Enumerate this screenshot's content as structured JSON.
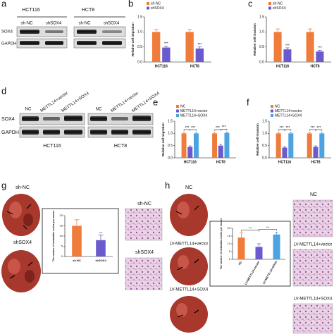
{
  "panels": {
    "a": {
      "letter": "a",
      "cell_lines": [
        "HCT116",
        "HCT8"
      ],
      "lanes": [
        "sh-NC",
        "shSOX4",
        "sh-NC",
        "shSOX4"
      ],
      "rows": [
        "SOX4",
        "GAPDH"
      ]
    },
    "b": {
      "letter": "b"
    },
    "c": {
      "letter": "c"
    },
    "d": {
      "letter": "d",
      "lanes": [
        "NC",
        "METTL14+vector",
        "METTL14+SOX4",
        "NC",
        "METTL14+vector",
        "METTL14+SOX4"
      ],
      "rows": [
        "SOX4",
        "GAPDH"
      ],
      "cell_lines": [
        "HCT116",
        "HCT8"
      ]
    },
    "e": {
      "letter": "e"
    },
    "f": {
      "letter": "f"
    },
    "g": {
      "letter": "g",
      "lungs": [
        "sh-NC",
        "shSOX4"
      ],
      "histology": [
        "sh-NC",
        "shSOX4"
      ]
    },
    "h": {
      "letter": "h",
      "lungs": [
        "NC",
        "LV-METTL14+vector",
        "LV-METTL14+SOX4"
      ],
      "histology": [
        "NC",
        "LV-METTL14+vector",
        "LV-METTL14+SOX4"
      ]
    }
  },
  "chart_data": [
    {
      "type": "bar",
      "y_label": "Relative cell migration",
      "categories": [
        "HCT116",
        "HCT8"
      ],
      "series": [
        {
          "name": "sh-NC",
          "color": "#f07c3c",
          "values": [
            1.0,
            1.0
          ],
          "errors": [
            0.08,
            0.08
          ]
        },
        {
          "name": "shSOX4",
          "color": "#6a5acd",
          "values": [
            0.48,
            0.45
          ],
          "errors": [
            0.05,
            0.05
          ],
          "significance": [
            "***",
            "***"
          ]
        }
      ],
      "ylim": [
        0,
        1.5
      ],
      "yticks": [
        {
          "value": 0,
          "label": "0.0"
        },
        {
          "value": 0.5,
          "label": "0.5"
        },
        {
          "value": 1,
          "label": "1.0"
        },
        {
          "value": 1.5,
          "label": "1.5"
        }
      ],
      "legend": "upper left"
    },
    {
      "type": "bar",
      "y_label": "Relative cell invasion",
      "categories": [
        "HCT116",
        "HCT8"
      ],
      "series": [
        {
          "name": "sh-NC",
          "color": "#f07c3c",
          "values": [
            1.0,
            1.0
          ],
          "errors": [
            0.1,
            0.1
          ]
        },
        {
          "name": "shSOX4",
          "color": "#6a5acd",
          "values": [
            0.42,
            0.35
          ],
          "errors": [
            0.05,
            0.04
          ],
          "significance": [
            "***",
            "***"
          ]
        }
      ],
      "ylim": [
        0,
        1.5
      ],
      "yticks": [
        {
          "value": 0,
          "label": "0.0"
        },
        {
          "value": 0.5,
          "label": "0.5"
        },
        {
          "value": 1,
          "label": "1.0"
        },
        {
          "value": 1.5,
          "label": "1.5"
        }
      ],
      "legend": "upper left"
    },
    {
      "type": "bar",
      "y_label": "Relative cell migration",
      "categories": [
        "HCT116",
        "HCT8"
      ],
      "brackets": true,
      "series": [
        {
          "name": "NC",
          "color": "#f07c3c",
          "values": [
            1.0,
            1.0
          ],
          "errors": [
            0.04,
            0.04
          ]
        },
        {
          "name": "METTL14+vector",
          "color": "#6a5acd",
          "values": [
            0.45,
            0.5
          ],
          "errors": [
            0.04,
            0.05
          ],
          "significance": [
            "***",
            "***"
          ]
        },
        {
          "name": "METTL14+SOX4",
          "color": "#4da3e0",
          "values": [
            1.0,
            1.02
          ],
          "errors": [
            0.04,
            0.04
          ],
          "significance": [
            "***",
            "***"
          ]
        }
      ],
      "ylim": [
        0,
        1.5
      ],
      "yticks": [
        {
          "value": 0,
          "label": "0.0"
        },
        {
          "value": 0.5,
          "label": "0.5"
        },
        {
          "value": 1,
          "label": "1.0"
        },
        {
          "value": 1.5,
          "label": "1.5"
        }
      ],
      "legend": "upper left"
    },
    {
      "type": "bar",
      "y_label": "Relative cell invasion",
      "categories": [
        "HCT116",
        "HCT8"
      ],
      "brackets": true,
      "series": [
        {
          "name": "NC",
          "color": "#f07c3c",
          "values": [
            1.0,
            1.0
          ],
          "errors": [
            0.04,
            0.04
          ]
        },
        {
          "name": "METTL14+vector",
          "color": "#6a5acd",
          "values": [
            0.42,
            0.45
          ],
          "errors": [
            0.04,
            0.04
          ],
          "significance": [
            "***",
            "***"
          ]
        },
        {
          "name": "METTL14+SOX4",
          "color": "#4da3e0",
          "values": [
            1.0,
            1.0
          ],
          "errors": [
            0.04,
            0.04
          ],
          "significance": [
            "***",
            "***"
          ]
        }
      ],
      "ylim": [
        0,
        1.5
      ],
      "yticks": [
        {
          "value": 0,
          "label": "0.0"
        },
        {
          "value": 0.5,
          "label": "0.5"
        },
        {
          "value": 1,
          "label": "1.0"
        },
        {
          "value": 1.5,
          "label": "1.5"
        }
      ],
      "legend": "upper left"
    },
    {
      "type": "bar",
      "y_label": "The number of metastatic nodes per mouse",
      "categories": [
        "sh-NC",
        "shSOX4"
      ],
      "values": [
        15,
        8
      ],
      "errors": [
        3,
        2.5
      ],
      "colors": [
        "#f07c3c",
        "#6a5acd"
      ],
      "significance": [
        null,
        "***"
      ],
      "ylim": [
        0,
        20
      ],
      "yticks": [
        0,
        5,
        10,
        15,
        20
      ]
    },
    {
      "type": "bar",
      "y_label": "The number of metastatic nodes per mouse",
      "categories": [
        "NC",
        "LV-METTL14+vector",
        "LV-METTL14+SOX4"
      ],
      "brackets": true,
      "values": [
        14,
        8,
        16
      ],
      "errors": [
        3,
        2,
        1.5
      ],
      "colors": [
        "#f07c3c",
        "#6a5acd",
        "#4da3e0"
      ],
      "significance": [
        null,
        "***",
        "***"
      ],
      "ylim": [
        0,
        20
      ],
      "yticks": [
        0,
        5,
        10,
        15,
        20
      ]
    }
  ]
}
